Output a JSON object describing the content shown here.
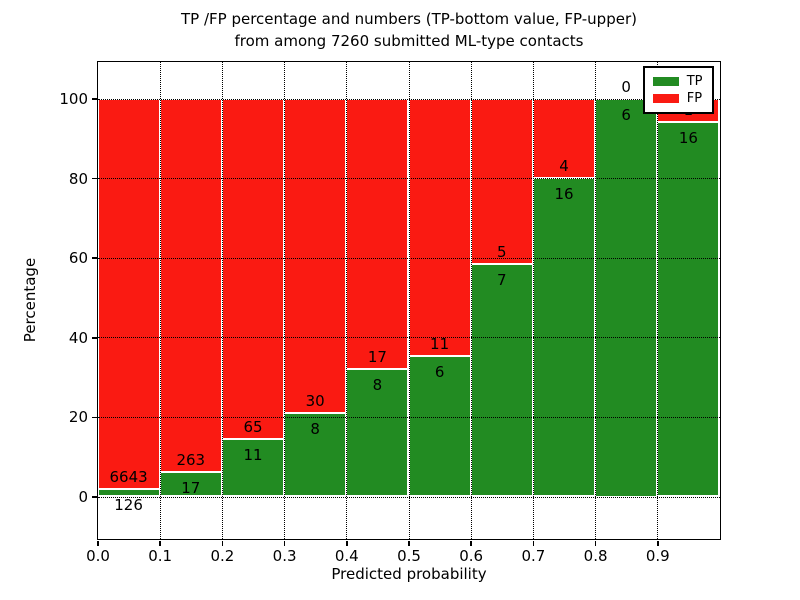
{
  "chart_data": {
    "type": "bar",
    "stacked": true,
    "normalized_to_percent": true,
    "title": "TP /FP percentage and numbers (TP-bottom value, FP-upper)",
    "subtitle": "from among 7260 submitted ML-type contacts",
    "xlabel": "Predicted probability",
    "ylabel": "Percentage",
    "xlim": [
      0.0,
      1.0
    ],
    "ylim": [
      -11,
      110
    ],
    "grid": true,
    "bin_width": 0.1,
    "x_tick_labels": [
      "0.0",
      "0.1",
      "0.2",
      "0.3",
      "0.4",
      "0.5",
      "0.6",
      "0.7",
      "0.8",
      "0.9"
    ],
    "y_tick_values": [
      0,
      20,
      40,
      60,
      80,
      100
    ],
    "y_tick_labels": [
      "0",
      "20",
      "40",
      "60",
      "80",
      "100"
    ],
    "series": [
      {
        "name": "TP",
        "color": "#228b22",
        "counts": [
          126,
          17,
          11,
          8,
          8,
          6,
          7,
          16,
          6,
          16
        ]
      },
      {
        "name": "FP",
        "color": "#fa1a12",
        "counts": [
          6643,
          263,
          65,
          30,
          17,
          11,
          5,
          4,
          0,
          1
        ]
      }
    ],
    "tp_percent": [
      1.86,
      6.07,
      14.47,
      21.05,
      32.0,
      35.29,
      58.33,
      80.0,
      100.0,
      94.12
    ],
    "legend": {
      "position": "upper-right",
      "entries": [
        "TP",
        "FP"
      ]
    },
    "total_contacts": 7260
  }
}
